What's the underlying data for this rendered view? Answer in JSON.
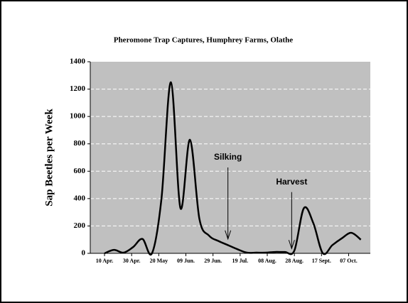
{
  "chart_data": {
    "type": "line",
    "title": "Pheromone Trap Captures, Humphrey Farms, Olathe",
    "y_label": "Sap Beetles per Week",
    "x": [
      0,
      7,
      14,
      21,
      28,
      35,
      42,
      49,
      56,
      63,
      70,
      77,
      84,
      91,
      98,
      105,
      112,
      119,
      126,
      133,
      140,
      147,
      154,
      161,
      168,
      175,
      182,
      189
    ],
    "series": [
      {
        "name": "Sap beetles",
        "color": "#000000",
        "values": [
          0,
          25,
          5,
          45,
          105,
          0,
          400,
          1250,
          330,
          830,
          250,
          130,
          90,
          60,
          30,
          5,
          5,
          5,
          10,
          10,
          20,
          330,
          220,
          0,
          60,
          110,
          150,
          100
        ]
      }
    ],
    "xlim": [
      -10.5,
      196
    ],
    "xticks": [
      {
        "value": 0,
        "label": "10 Apr."
      },
      {
        "value": 20,
        "label": "30 Apr."
      },
      {
        "value": 40,
        "label": "20 May"
      },
      {
        "value": 60,
        "label": "09 Jun."
      },
      {
        "value": 80,
        "label": "29 Jun."
      },
      {
        "value": 100,
        "label": "19 Jul."
      },
      {
        "value": 120,
        "label": "08 Aug."
      },
      {
        "value": 140,
        "label": "28 Aug."
      },
      {
        "value": 160,
        "label": "17 Sept."
      },
      {
        "value": 180,
        "label": "07 Oct."
      }
    ],
    "ylim": [
      0,
      1400
    ],
    "yticks": [
      0,
      200,
      400,
      600,
      800,
      1000,
      1200,
      1400
    ],
    "grid": true,
    "background": "#c0c0c0",
    "annotations": [
      {
        "text": "Silking",
        "x": 91,
        "y": 700,
        "arrow_to": 105
      },
      {
        "text": "Harvest",
        "x": 138,
        "y": 520,
        "arrow_to": 35
      }
    ]
  }
}
